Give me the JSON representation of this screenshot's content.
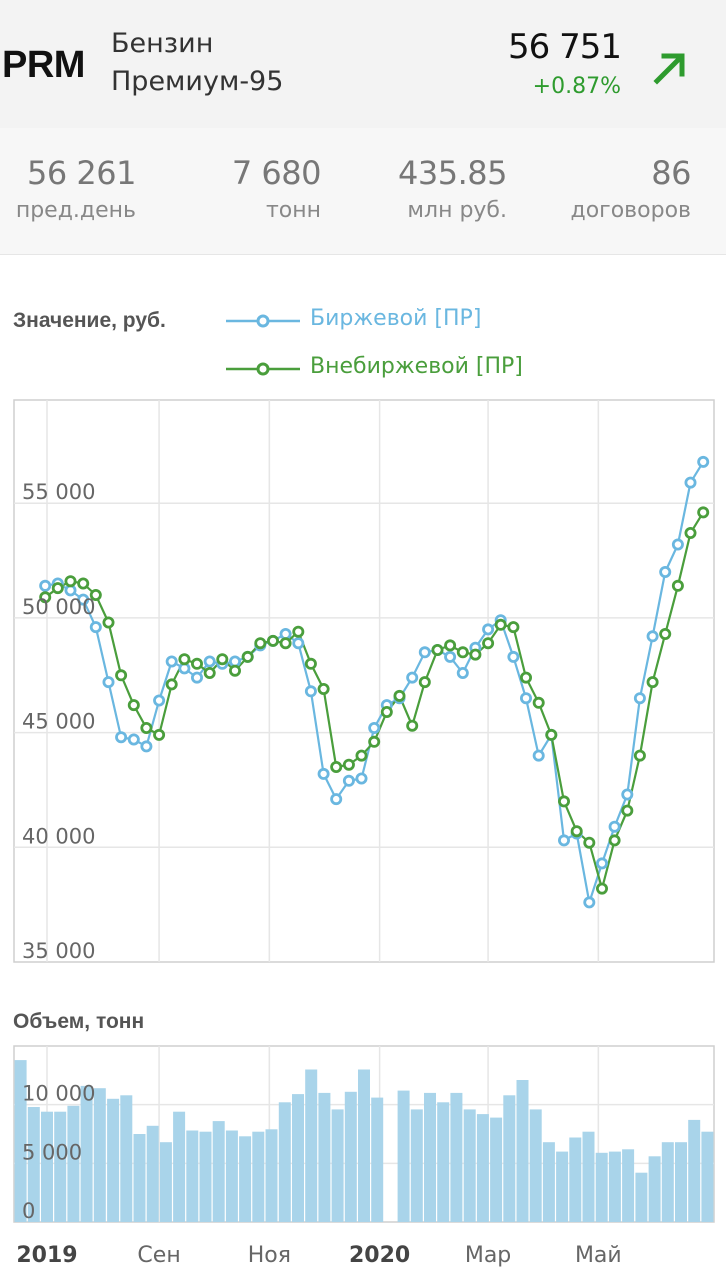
{
  "header": {
    "ticker": "PRM",
    "name_line1": "Бензин",
    "name_line2": "Премиум-95",
    "price": "56 751",
    "change": "+0.87%",
    "arrow_icon": "arrow-up-right-icon",
    "change_color": "#2e9b2e"
  },
  "stats": [
    {
      "value": "56 261",
      "label": "пред.день"
    },
    {
      "value": "7 680",
      "label": "тонн"
    },
    {
      "value": "435.85",
      "label": "млн руб."
    },
    {
      "value": "86",
      "label": "договоров"
    }
  ],
  "chart_data": [
    {
      "type": "line",
      "ylabel": "Значение, руб.",
      "ylim": [
        35000,
        59500
      ],
      "yticks": [
        35000,
        40000,
        45000,
        50000,
        55000
      ],
      "ytick_labels": [
        "35 000",
        "40 000",
        "45 000",
        "50 000",
        "55 000"
      ],
      "x_range": [
        "2019-07-01",
        "2020-06-29"
      ],
      "xticks": [
        "2019-07-01",
        "2019-09-01",
        "2019-11-01",
        "2020-01-01",
        "2020-03-01",
        "2020-05-01"
      ],
      "xtick_labels": [
        "2019",
        "Сен",
        "Ноя",
        "2020",
        "Мар",
        "Май"
      ],
      "grid": true,
      "legend_position": "top",
      "series": [
        {
          "name": "Биржевой [ПР]",
          "color": "#6ab7e0",
          "x": [
            "2019-06-30",
            "2019-07-07",
            "2019-07-14",
            "2019-07-21",
            "2019-07-28",
            "2019-08-04",
            "2019-08-11",
            "2019-08-18",
            "2019-08-25",
            "2019-09-01",
            "2019-09-08",
            "2019-09-15",
            "2019-09-22",
            "2019-09-29",
            "2019-10-06",
            "2019-10-13",
            "2019-10-20",
            "2019-10-27",
            "2019-11-03",
            "2019-11-10",
            "2019-11-17",
            "2019-11-24",
            "2019-12-01",
            "2019-12-08",
            "2019-12-15",
            "2019-12-22",
            "2019-12-29",
            "2020-01-05",
            "2020-01-12",
            "2020-01-19",
            "2020-01-26",
            "2020-02-02",
            "2020-02-09",
            "2020-02-16",
            "2020-02-23",
            "2020-03-01",
            "2020-03-08",
            "2020-03-15",
            "2020-03-22",
            "2020-03-29",
            "2020-04-05",
            "2020-04-12",
            "2020-04-19",
            "2020-04-26",
            "2020-05-03",
            "2020-05-10",
            "2020-05-17",
            "2020-05-24",
            "2020-05-31",
            "2020-06-07",
            "2020-06-14",
            "2020-06-21",
            "2020-06-28"
          ],
          "values": [
            51400,
            51500,
            51200,
            50800,
            49600,
            47200,
            44800,
            44700,
            44400,
            46400,
            48100,
            47800,
            47400,
            48100,
            48000,
            48100,
            48300,
            48800,
            49000,
            49300,
            48900,
            46800,
            43200,
            42100,
            42900,
            43000,
            45200,
            46200,
            46500,
            47400,
            48500,
            48600,
            48300,
            47600,
            48700,
            49500,
            49900,
            48300,
            46500,
            44000,
            44900,
            40300,
            40600,
            37600,
            39300,
            40900,
            42300,
            46500,
            49200,
            52000,
            53200,
            55900,
            56800
          ]
        },
        {
          "name": "Внебиржевой [ПР]",
          "color": "#4a9e3c",
          "x": [
            "2019-06-30",
            "2019-07-07",
            "2019-07-14",
            "2019-07-21",
            "2019-07-28",
            "2019-08-04",
            "2019-08-11",
            "2019-08-18",
            "2019-08-25",
            "2019-09-01",
            "2019-09-08",
            "2019-09-15",
            "2019-09-22",
            "2019-09-29",
            "2019-10-06",
            "2019-10-13",
            "2019-10-20",
            "2019-10-27",
            "2019-11-03",
            "2019-11-10",
            "2019-11-17",
            "2019-11-24",
            "2019-12-01",
            "2019-12-08",
            "2019-12-15",
            "2019-12-22",
            "2019-12-29",
            "2020-01-05",
            "2020-01-12",
            "2020-01-19",
            "2020-01-26",
            "2020-02-02",
            "2020-02-09",
            "2020-02-16",
            "2020-02-23",
            "2020-03-01",
            "2020-03-08",
            "2020-03-15",
            "2020-03-22",
            "2020-03-29",
            "2020-04-05",
            "2020-04-12",
            "2020-04-19",
            "2020-04-26",
            "2020-05-03",
            "2020-05-10",
            "2020-05-17",
            "2020-05-24",
            "2020-05-31",
            "2020-06-07",
            "2020-06-14",
            "2020-06-21",
            "2020-06-28"
          ],
          "values": [
            50900,
            51300,
            51600,
            51500,
            51000,
            49800,
            47500,
            46200,
            45200,
            44900,
            47100,
            48200,
            48000,
            47600,
            48200,
            47700,
            48300,
            48900,
            49000,
            48900,
            49400,
            48000,
            46900,
            43500,
            43600,
            44000,
            44600,
            45900,
            46600,
            45300,
            47200,
            48600,
            48800,
            48500,
            48400,
            48900,
            49700,
            49600,
            47400,
            46300,
            44900,
            42000,
            40700,
            40200,
            38200,
            40300,
            41600,
            44000,
            47200,
            49300,
            51400,
            53700,
            54600
          ]
        }
      ]
    },
    {
      "type": "bar",
      "ylabel": "Объем, тонн",
      "ylim": [
        0,
        15000
      ],
      "yticks": [
        0,
        5000,
        10000
      ],
      "ytick_labels": [
        "0",
        "5 000",
        "10 000"
      ],
      "grid": true,
      "color": "#a9d4ea",
      "values": [
        13800,
        9800,
        9400,
        9400,
        9900,
        11600,
        11400,
        10500,
        10800,
        7500,
        8200,
        6800,
        9400,
        7800,
        7700,
        8600,
        7800,
        7300,
        7700,
        7900,
        10200,
        10900,
        13000,
        11000,
        9600,
        11100,
        13000,
        10600,
        0,
        11200,
        9600,
        11000,
        10200,
        11000,
        9600,
        9200,
        8900,
        10800,
        12100,
        9600,
        6800,
        6000,
        7200,
        7700,
        5900,
        6000,
        6200,
        4200,
        5600,
        6800,
        6800,
        8700,
        7700
      ]
    }
  ]
}
